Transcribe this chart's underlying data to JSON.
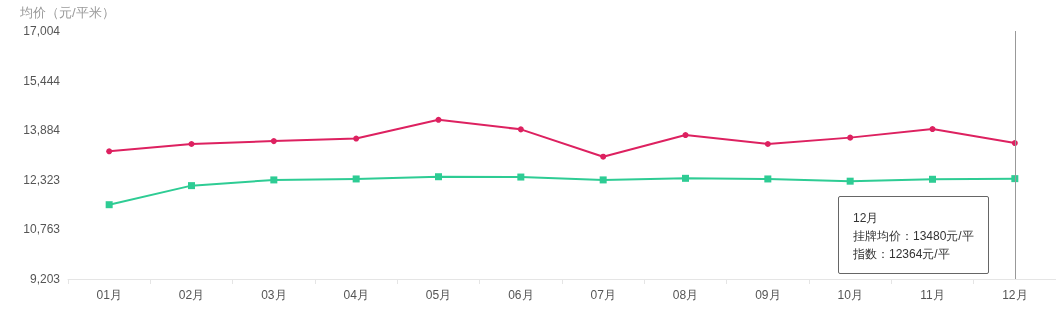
{
  "chart_data": {
    "type": "line",
    "ylabel": "均价（元/平米）",
    "categories": [
      "01月",
      "02月",
      "03月",
      "04月",
      "05月",
      "06月",
      "07月",
      "08月",
      "09月",
      "10月",
      "11月",
      "12月"
    ],
    "series": [
      {
        "color": "#dd2160",
        "marker": "circle",
        "values": [
          13220,
          13450,
          13540,
          13620,
          14210,
          13910,
          13050,
          13730,
          13450,
          13650,
          13920,
          13480
        ]
      },
      {
        "color": "#2ecc94",
        "marker": "square",
        "values": [
          11540,
          12140,
          12320,
          12350,
          12420,
          12410,
          12320,
          12370,
          12350,
          12280,
          12340,
          12360
        ]
      }
    ],
    "ylim": [
      9203,
      17004
    ],
    "yticks": [
      {
        "value": 9203,
        "label": "9,203"
      },
      {
        "value": 10763,
        "label": "10,763"
      },
      {
        "value": 12323,
        "label": "12,323"
      },
      {
        "value": 13884,
        "label": "13,884"
      },
      {
        "value": 15444,
        "label": "15,444"
      },
      {
        "value": 17004,
        "label": "17,004"
      }
    ],
    "ref_lines": [
      {
        "axis": "x",
        "value": "12月",
        "color": "#999999"
      }
    ],
    "annotations": [
      "12月",
      "挂牌均价：13480元/平",
      "指数：12364元/平"
    ]
  }
}
